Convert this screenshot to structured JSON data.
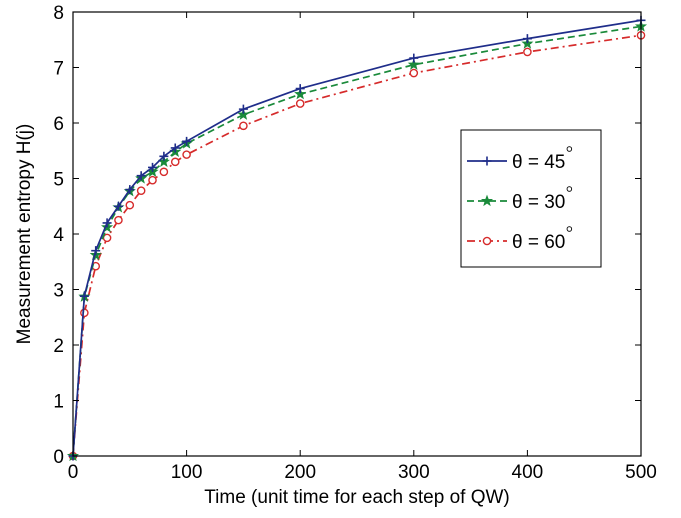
{
  "chart_data": {
    "type": "line",
    "title": "",
    "xlabel": "Time (unit time for each step of QW)",
    "ylabel": "Measurement entropy H(j)",
    "xlim": [
      0,
      500
    ],
    "ylim": [
      0,
      8
    ],
    "xticks": [
      0,
      100,
      200,
      300,
      400,
      500
    ],
    "yticks": [
      0,
      1,
      2,
      3,
      4,
      5,
      6,
      7,
      8
    ],
    "grid": false,
    "legend_position": "right, slightly above middle",
    "x": [
      0,
      10,
      20,
      30,
      40,
      50,
      60,
      70,
      80,
      90,
      100,
      150,
      200,
      300,
      400,
      500
    ],
    "series": [
      {
        "name": "θ = 45°",
        "label_text": "θ = 45",
        "color": "#1f2d8a",
        "line_style": "solid",
        "marker": "plus",
        "values": [
          0,
          2.88,
          3.7,
          4.2,
          4.5,
          4.8,
          5.05,
          5.2,
          5.4,
          5.55,
          5.67,
          6.25,
          6.62,
          7.17,
          7.52,
          7.85
        ]
      },
      {
        "name": "θ = 30°",
        "label_text": "θ = 30",
        "color": "#1a8a3a",
        "line_style": "dashed",
        "marker": "star",
        "values": [
          0,
          2.87,
          3.62,
          4.12,
          4.48,
          4.77,
          5.0,
          5.12,
          5.3,
          5.48,
          5.63,
          6.15,
          6.52,
          7.05,
          7.43,
          7.74
        ]
      },
      {
        "name": "θ = 60°",
        "label_text": "θ = 60",
        "color": "#d62b2b",
        "line_style": "dashdot",
        "marker": "circle",
        "values": [
          0,
          2.58,
          3.42,
          3.93,
          4.25,
          4.52,
          4.78,
          4.97,
          5.12,
          5.3,
          5.43,
          5.95,
          6.35,
          6.9,
          7.28,
          7.58
        ]
      }
    ]
  }
}
